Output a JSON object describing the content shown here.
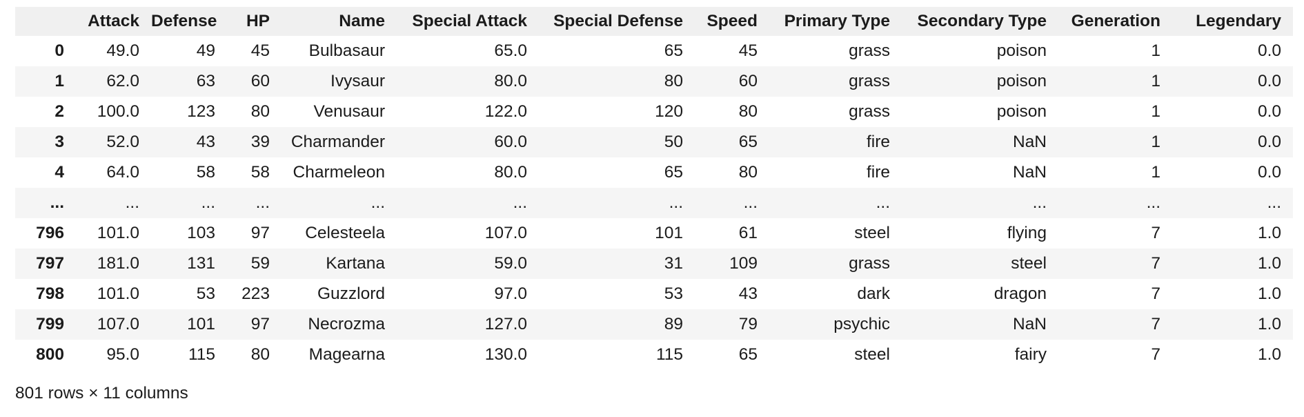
{
  "table": {
    "columns": [
      "",
      "Attack",
      "Defense",
      "HP",
      "Name",
      "Special Attack",
      "Special Defense",
      "Speed",
      "Primary Type",
      "Secondary Type",
      "Generation",
      "Legendary"
    ],
    "rows": [
      [
        "0",
        "49.0",
        "49",
        "45",
        "Bulbasaur",
        "65.0",
        "65",
        "45",
        "grass",
        "poison",
        "1",
        "0.0"
      ],
      [
        "1",
        "62.0",
        "63",
        "60",
        "Ivysaur",
        "80.0",
        "80",
        "60",
        "grass",
        "poison",
        "1",
        "0.0"
      ],
      [
        "2",
        "100.0",
        "123",
        "80",
        "Venusaur",
        "122.0",
        "120",
        "80",
        "grass",
        "poison",
        "1",
        "0.0"
      ],
      [
        "3",
        "52.0",
        "43",
        "39",
        "Charmander",
        "60.0",
        "50",
        "65",
        "fire",
        "NaN",
        "1",
        "0.0"
      ],
      [
        "4",
        "64.0",
        "58",
        "58",
        "Charmeleon",
        "80.0",
        "65",
        "80",
        "fire",
        "NaN",
        "1",
        "0.0"
      ],
      [
        "...",
        "...",
        "...",
        "...",
        "...",
        "...",
        "...",
        "...",
        "...",
        "...",
        "...",
        "..."
      ],
      [
        "796",
        "101.0",
        "103",
        "97",
        "Celesteela",
        "107.0",
        "101",
        "61",
        "steel",
        "flying",
        "7",
        "1.0"
      ],
      [
        "797",
        "181.0",
        "131",
        "59",
        "Kartana",
        "59.0",
        "31",
        "109",
        "grass",
        "steel",
        "7",
        "1.0"
      ],
      [
        "798",
        "101.0",
        "53",
        "223",
        "Guzzlord",
        "97.0",
        "53",
        "43",
        "dark",
        "dragon",
        "7",
        "1.0"
      ],
      [
        "799",
        "107.0",
        "101",
        "97",
        "Necrozma",
        "127.0",
        "89",
        "79",
        "psychic",
        "NaN",
        "7",
        "1.0"
      ],
      [
        "800",
        "95.0",
        "115",
        "80",
        "Magearna",
        "130.0",
        "115",
        "65",
        "steel",
        "fairy",
        "7",
        "1.0"
      ]
    ]
  },
  "footer": {
    "shape_text": "801 rows × 11 columns"
  }
}
